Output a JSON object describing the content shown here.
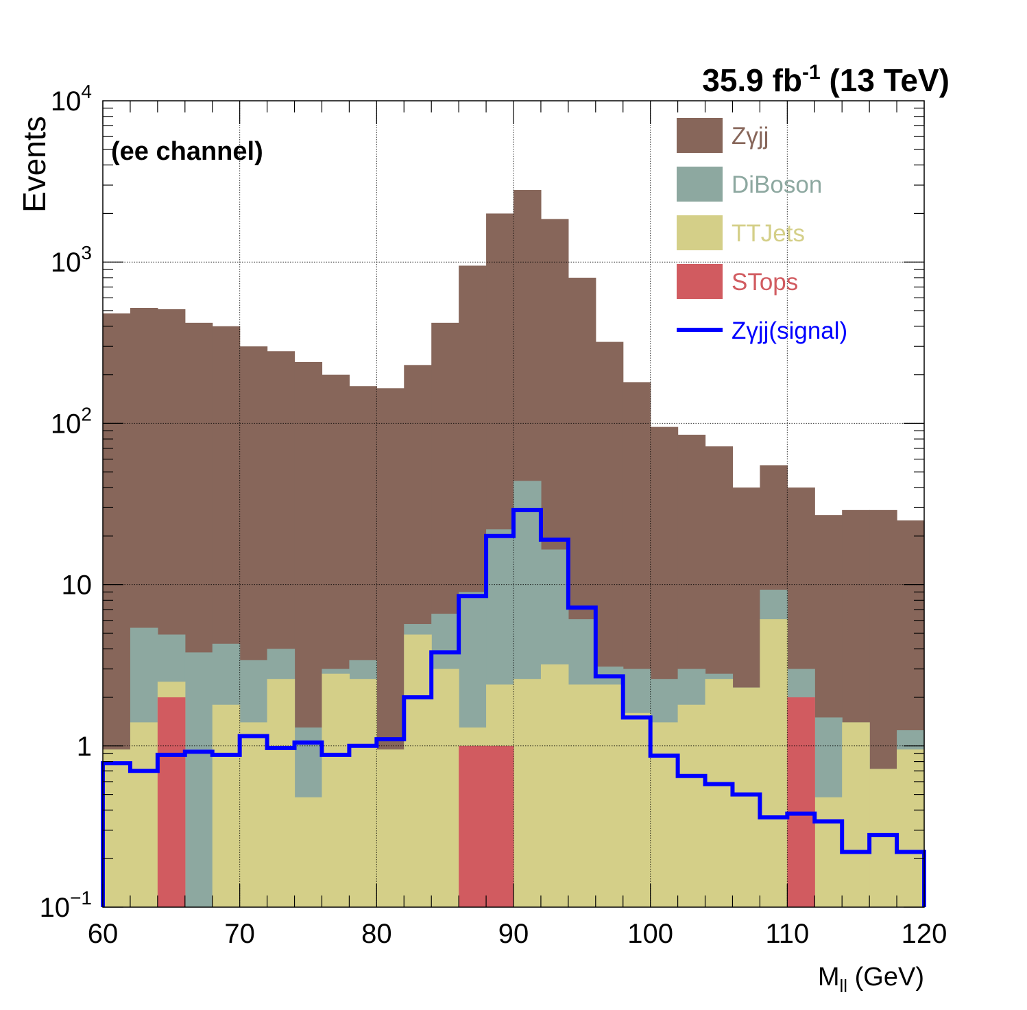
{
  "header": {
    "lumi_main": "35.9 fb",
    "lumi_exp": "-1",
    "lumi_energy": " (13 TeV)",
    "channel": "(ee channel)"
  },
  "colors": {
    "zgjj": "#87665a",
    "diboson": "#8da8a0",
    "ttjets": "#d4cf88",
    "stops": "#d15b60",
    "signal": "#0000ff",
    "grid": "#000000"
  },
  "chart_data": {
    "type": "bar",
    "stacked": true,
    "log_y": true,
    "grid": true,
    "legend_position": "top-right",
    "xlabel_main": "M",
    "xlabel_sub": "ll",
    "xlabel_unit": " (GeV)",
    "ylabel": "Events",
    "xlim": [
      60,
      120
    ],
    "ylim": [
      0.1,
      10000
    ],
    "x_ticks": [
      60,
      70,
      80,
      90,
      100,
      110,
      120
    ],
    "y_ticks": [
      {
        "value": 0.1,
        "base": "10",
        "exp": "−1"
      },
      {
        "value": 1,
        "base": "1",
        "exp": ""
      },
      {
        "value": 10,
        "base": "10",
        "exp": ""
      },
      {
        "value": 100,
        "base": "10",
        "exp": "2"
      },
      {
        "value": 1000,
        "base": "10",
        "exp": "3"
      },
      {
        "value": 10000,
        "base": "10",
        "exp": "4"
      }
    ],
    "bin_edges": [
      60,
      62,
      64,
      66,
      68,
      70,
      72,
      74,
      76,
      78,
      80,
      82,
      84,
      86,
      88,
      90,
      92,
      94,
      96,
      98,
      100,
      102,
      104,
      106,
      108,
      110,
      112,
      114,
      116,
      118,
      120
    ],
    "stack_totals": [
      {
        "name": "STops",
        "color_key": "stops",
        "values": [
          0,
          0,
          2.0,
          0,
          0,
          0,
          0,
          0,
          0,
          0,
          0,
          0,
          0,
          1.0,
          1.0,
          0,
          0,
          0,
          0,
          0,
          0,
          0,
          0,
          0,
          0,
          2.0,
          0,
          0,
          0,
          0
        ]
      },
      {
        "name": "TTJets",
        "color_key": "ttjets",
        "values": [
          0.95,
          1.4,
          2.5,
          0.1,
          1.8,
          1.4,
          2.6,
          0.48,
          2.8,
          2.6,
          0.95,
          4.9,
          3.0,
          1.3,
          2.4,
          2.6,
          3.2,
          2.4,
          2.4,
          1.6,
          1.4,
          1.8,
          2.6,
          2.3,
          6.1,
          1.5,
          0.48,
          1.4,
          0.72,
          0.95
        ]
      },
      {
        "name": "DiBoson",
        "color_key": "diboson",
        "values": [
          0.95,
          5.4,
          4.9,
          3.8,
          4.3,
          3.4,
          4.0,
          1.3,
          3.0,
          3.4,
          0.95,
          5.7,
          6.6,
          9.0,
          22,
          44,
          16.5,
          6.1,
          3.1,
          3.0,
          2.6,
          3.0,
          2.8,
          2.3,
          9.3,
          3.0,
          1.5,
          1.4,
          0.72,
          1.25
        ]
      },
      {
        "name": "Zγjj",
        "color_key": "zgjj",
        "values": [
          480,
          520,
          510,
          420,
          400,
          300,
          280,
          240,
          200,
          170,
          165,
          230,
          420,
          950,
          2000,
          2800,
          1850,
          800,
          320,
          180,
          95,
          85,
          72,
          40,
          55,
          40,
          27,
          29,
          29,
          25
        ]
      }
    ],
    "signal": {
      "name": "Zγjj(signal)",
      "values": [
        0.78,
        0.7,
        0.88,
        0.92,
        0.88,
        1.15,
        0.97,
        1.05,
        0.88,
        1.0,
        1.1,
        2.0,
        3.8,
        8.5,
        20,
        29,
        19,
        7.2,
        2.7,
        1.5,
        0.87,
        0.65,
        0.58,
        0.5,
        0.36,
        0.38,
        0.34,
        0.22,
        0.28,
        0.22
      ]
    },
    "legend": [
      {
        "label": "Zγjj",
        "color_key": "zgjj",
        "kind": "fill"
      },
      {
        "label": "DiBoson",
        "color_key": "diboson",
        "kind": "fill"
      },
      {
        "label": "TTJets",
        "color_key": "ttjets",
        "kind": "fill"
      },
      {
        "label": "STops",
        "color_key": "stops",
        "kind": "fill"
      },
      {
        "label": "Zγjj(signal)",
        "color_key": "signal",
        "kind": "line"
      }
    ]
  }
}
